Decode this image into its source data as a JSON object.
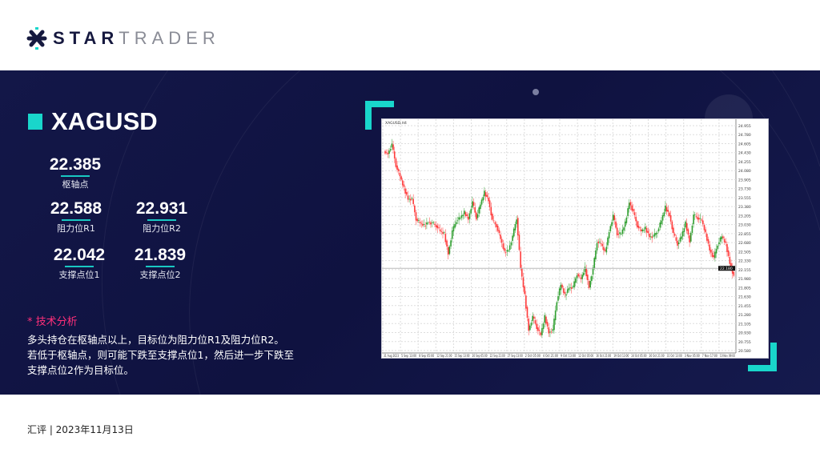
{
  "brand": {
    "name_bold": "STAR",
    "name_light": "TRADER",
    "accent": "#19d6cb",
    "navy": "#10123f"
  },
  "symbol": "XAGUSD",
  "levels": {
    "pivot": {
      "value": "22.385",
      "label": "枢轴点"
    },
    "r1": {
      "value": "22.588",
      "label": "阻力位R1"
    },
    "r2": {
      "value": "22.931",
      "label": "阻力位R2"
    },
    "s1": {
      "value": "22.042",
      "label": "支撑点位1"
    },
    "s2": {
      "value": "21.839",
      "label": "支撑点位2"
    }
  },
  "analysis": {
    "title": "* 技术分析",
    "lines": [
      "多头持仓在枢轴点以上，目标位为阻力位R1及阻力位R2。",
      "若低于枢轴点，则可能下跌至支撑点位1，然后进一步下跌至",
      "支撑点位2作为目标位。"
    ]
  },
  "footer": "汇评 | 2023年11月13日",
  "chart_data": {
    "type": "candlestick",
    "title": "XAGUSD,H4",
    "up_color": "#2e9e2e",
    "down_color": "#ff3b3b",
    "ylim": [
      20.58,
      24.955
    ],
    "y_ticks": [
      "24.955",
      "24.780",
      "24.605",
      "24.430",
      "24.255",
      "24.080",
      "23.905",
      "23.730",
      "23.555",
      "23.380",
      "23.205",
      "23.030",
      "22.855",
      "22.680",
      "22.505",
      "22.330",
      "22.155",
      "21.980",
      "21.805",
      "21.630",
      "21.455",
      "21.280",
      "21.105",
      "20.930",
      "20.755",
      "20.580"
    ],
    "x_ticks": [
      "31 Aug 2023",
      "5 Sep 13:00",
      "8 Sep 05:00",
      "12 Sep 21:00",
      "15 Sep 13:00",
      "20 Sep 05:00",
      "22 Sep 21:00",
      "27 Sep 13:00",
      "2 Oct 05:00",
      "4 Oct 21:00",
      "9 Oct 13:00",
      "12 Oct 05:00",
      "16 Oct 21:00",
      "19 Oct 13:00",
      "24 Oct 05:00",
      "26 Oct 21:00",
      "31 Oct 13:00",
      "3 Nov 05:00",
      "7 Nov 17:00",
      "10 Nov 09:00"
    ],
    "current_price": "22.180",
    "closes": [
      24.41,
      24.59,
      24.18,
      23.97,
      23.73,
      23.53,
      23.53,
      23.14,
      23.06,
      23.01,
      23.08,
      23.06,
      23.01,
      22.9,
      22.85,
      22.46,
      22.9,
      23.11,
      23.16,
      23.27,
      23.14,
      23.47,
      23.16,
      23.42,
      23.66,
      23.5,
      23.11,
      23.01,
      22.75,
      22.49,
      22.54,
      22.8,
      23.16,
      22.18,
      21.65,
      20.98,
      21.24,
      21.03,
      20.88,
      21.24,
      20.93,
      20.98,
      21.55,
      21.86,
      21.65,
      21.81,
      21.81,
      22.07,
      21.97,
      22.18,
      21.81,
      22.18,
      22.7,
      22.65,
      22.49,
      22.9,
      23.21,
      22.85,
      22.85,
      23.06,
      23.47,
      23.27,
      23.01,
      22.9,
      22.96,
      22.8,
      22.8,
      22.9,
      23.11,
      23.37,
      23.21,
      22.85,
      22.65,
      22.8,
      23.06,
      22.7,
      23.21,
      23.16,
      23.11,
      22.85,
      22.54,
      22.38,
      22.65,
      22.8,
      22.65,
      22.28,
      22.02
    ]
  }
}
